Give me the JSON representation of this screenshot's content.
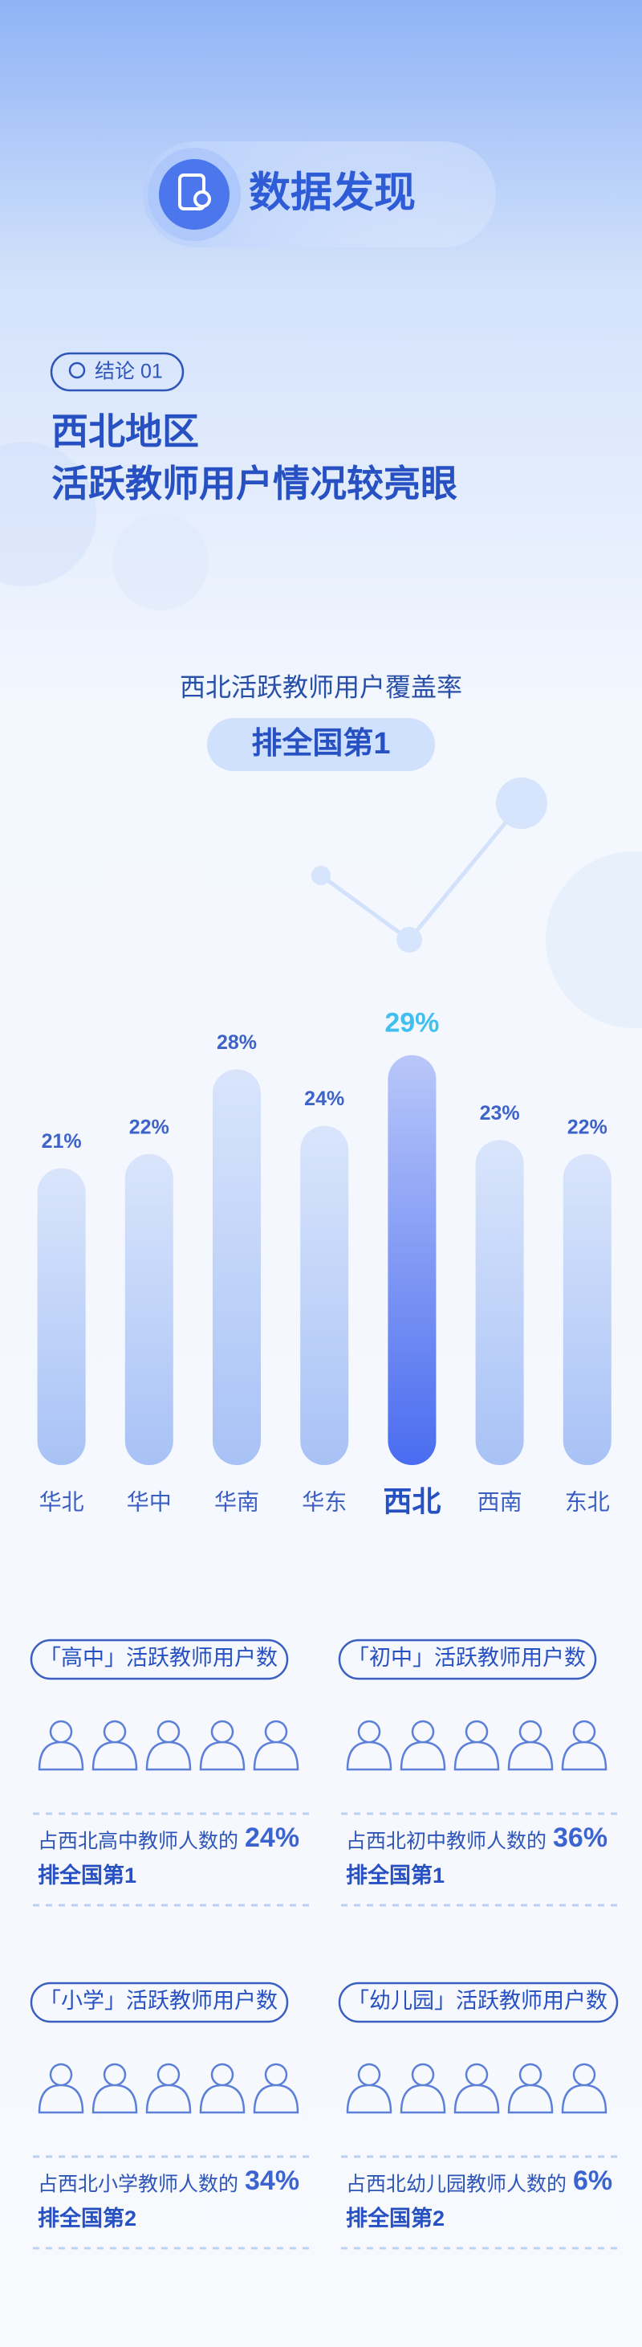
{
  "header": {
    "title": "数据发现"
  },
  "conclusion": {
    "tag": "结论 01",
    "heading": [
      "西北地区",
      "活跃教师用户情况较亮眼"
    ]
  },
  "chart_data": {
    "type": "bar",
    "title": "西北活跃教师用户覆盖率",
    "subtitle": "排全国第1",
    "categories": [
      "华北",
      "华中",
      "华南",
      "华东",
      "西北",
      "西南",
      "东北"
    ],
    "values": [
      21,
      22,
      28,
      24,
      29,
      23,
      22
    ],
    "value_labels": [
      "21%",
      "22%",
      "28%",
      "24%",
      "29%",
      "23%",
      "22%"
    ],
    "colors": [
      "#a8c2f6",
      "#a8c2f6",
      "#a8c2f6",
      "#a8c2f6",
      "#4a6cf0",
      "#a8c2f6",
      "#a8c2f6"
    ]
  },
  "panels": [
    {
      "title": "「高中」活跃教师用户数",
      "text": "占西北高中教师人数的",
      "value": 24,
      "value_label": "24%",
      "rank": "排全国第1"
    },
    {
      "title": "「初中」活跃教师用户数",
      "text": "占西北初中教师人数的",
      "value": 36,
      "value_label": "36%",
      "rank": "排全国第1"
    },
    {
      "title": "「小学」活跃教师用户数",
      "text": "占西北小学教师人数的",
      "value": 34,
      "value_label": "34%",
      "rank": "排全国第2"
    },
    {
      "title": "「幼儿园」活跃教师用户数",
      "text": "占西北幼儿园教师人数的",
      "value": 6,
      "value_label": "6%",
      "rank": "排全国第2"
    }
  ]
}
